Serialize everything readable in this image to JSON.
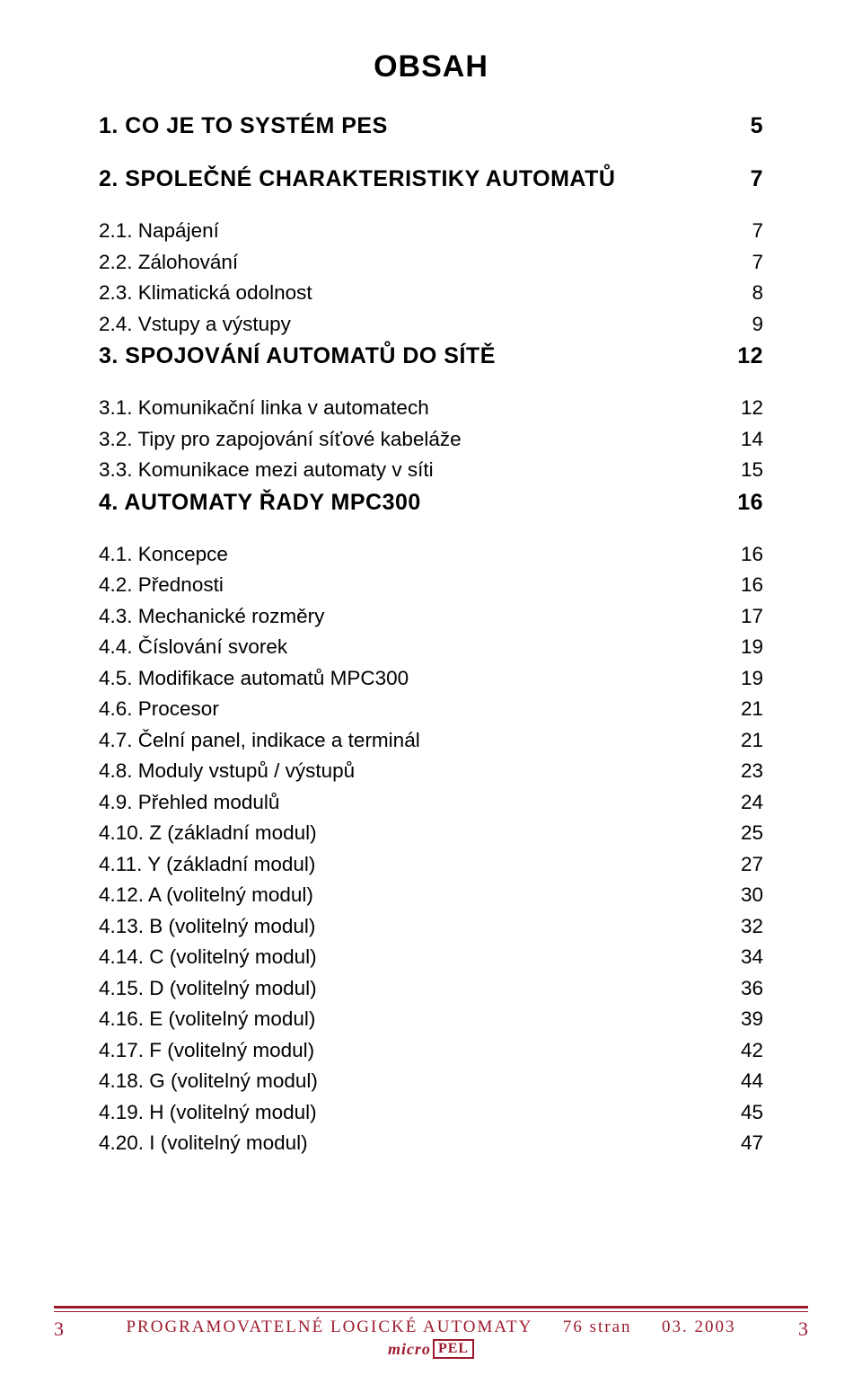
{
  "colors": {
    "brand": "#9c1a2e",
    "text": "#000000",
    "background": "#ffffff"
  },
  "typography": {
    "title_fontsize": 34,
    "h1_fontsize": 25,
    "h2_fontsize": 22.5,
    "font_family": "Arial",
    "footer_font_family": "Georgia"
  },
  "title": "OBSAH",
  "toc": [
    {
      "level": 1,
      "label": "1. CO JE TO SYSTÉM PES",
      "page": "5"
    },
    {
      "level": 1,
      "label": "2. SPOLEČNÉ CHARAKTERISTIKY AUTOMATŮ",
      "page": "7"
    },
    {
      "level": 2,
      "label": "2.1. Napájení",
      "page": "7"
    },
    {
      "level": 2,
      "label": "2.2. Zálohování",
      "page": "7"
    },
    {
      "level": 2,
      "label": "2.3. Klimatická odolnost",
      "page": "8"
    },
    {
      "level": 2,
      "label": "2.4. Vstupy a výstupy",
      "page": "9"
    },
    {
      "level": 1,
      "label": "3. SPOJOVÁNÍ AUTOMATŮ DO SÍTĚ",
      "page": "12"
    },
    {
      "level": 2,
      "label": "3.1. Komunikační linka v automatech",
      "page": "12"
    },
    {
      "level": 2,
      "label": "3.2. Tipy pro zapojování síťové kabeláže",
      "page": "14"
    },
    {
      "level": 2,
      "label": "3.3. Komunikace mezi automaty v síti",
      "page": "15"
    },
    {
      "level": 1,
      "label": "4. AUTOMATY ŘADY MPC300",
      "page": "16"
    },
    {
      "level": 2,
      "label": "4.1. Koncepce",
      "page": "16"
    },
    {
      "level": 2,
      "label": "4.2. Přednosti",
      "page": "16"
    },
    {
      "level": 2,
      "label": "4.3. Mechanické rozměry",
      "page": "17"
    },
    {
      "level": 2,
      "label": "4.4. Číslování svorek",
      "page": "19"
    },
    {
      "level": 2,
      "label": "4.5. Modifikace automatů MPC300",
      "page": "19"
    },
    {
      "level": 2,
      "label": "4.6. Procesor",
      "page": "21"
    },
    {
      "level": 2,
      "label": "4.7. Čelní panel, indikace a terminál",
      "page": "21"
    },
    {
      "level": 2,
      "label": "4.8. Moduly  vstupů / výstupů",
      "page": "23"
    },
    {
      "level": 2,
      "label": "4.9. Přehled modulů",
      "page": "24"
    },
    {
      "level": 2,
      "label": "4.10. Z    (základní modul)",
      "page": "25"
    },
    {
      "level": 2,
      "label": "4.11. Y    (základní modul)",
      "page": "27"
    },
    {
      "level": 2,
      "label": "4.12. A    (volitelný modul)",
      "page": "30"
    },
    {
      "level": 2,
      "label": "4.13. B    (volitelný modul)",
      "page": "32"
    },
    {
      "level": 2,
      "label": "4.14. C    (volitelný modul)",
      "page": "34"
    },
    {
      "level": 2,
      "label": "4.15. D    (volitelný modul)",
      "page": "36"
    },
    {
      "level": 2,
      "label": "4.16. E    (volitelný modul)",
      "page": "39"
    },
    {
      "level": 2,
      "label": "4.17. F    (volitelný modul)",
      "page": "42"
    },
    {
      "level": 2,
      "label": "4.18. G    (volitelný modul)",
      "page": "44"
    },
    {
      "level": 2,
      "label": "4.19. H    (volitelný modul)",
      "page": "45"
    },
    {
      "level": 2,
      "label": "4.20. I    (volitelný modul)",
      "page": "47"
    }
  ],
  "footer": {
    "page_left": "3",
    "page_right": "3",
    "text_main": "PROGRAMOVATELNÉ  LOGICKÉ  AUTOMATY",
    "text_pages": "76 stran",
    "text_date": "03. 2003",
    "logo_left": "micro",
    "logo_right": "PEL"
  }
}
